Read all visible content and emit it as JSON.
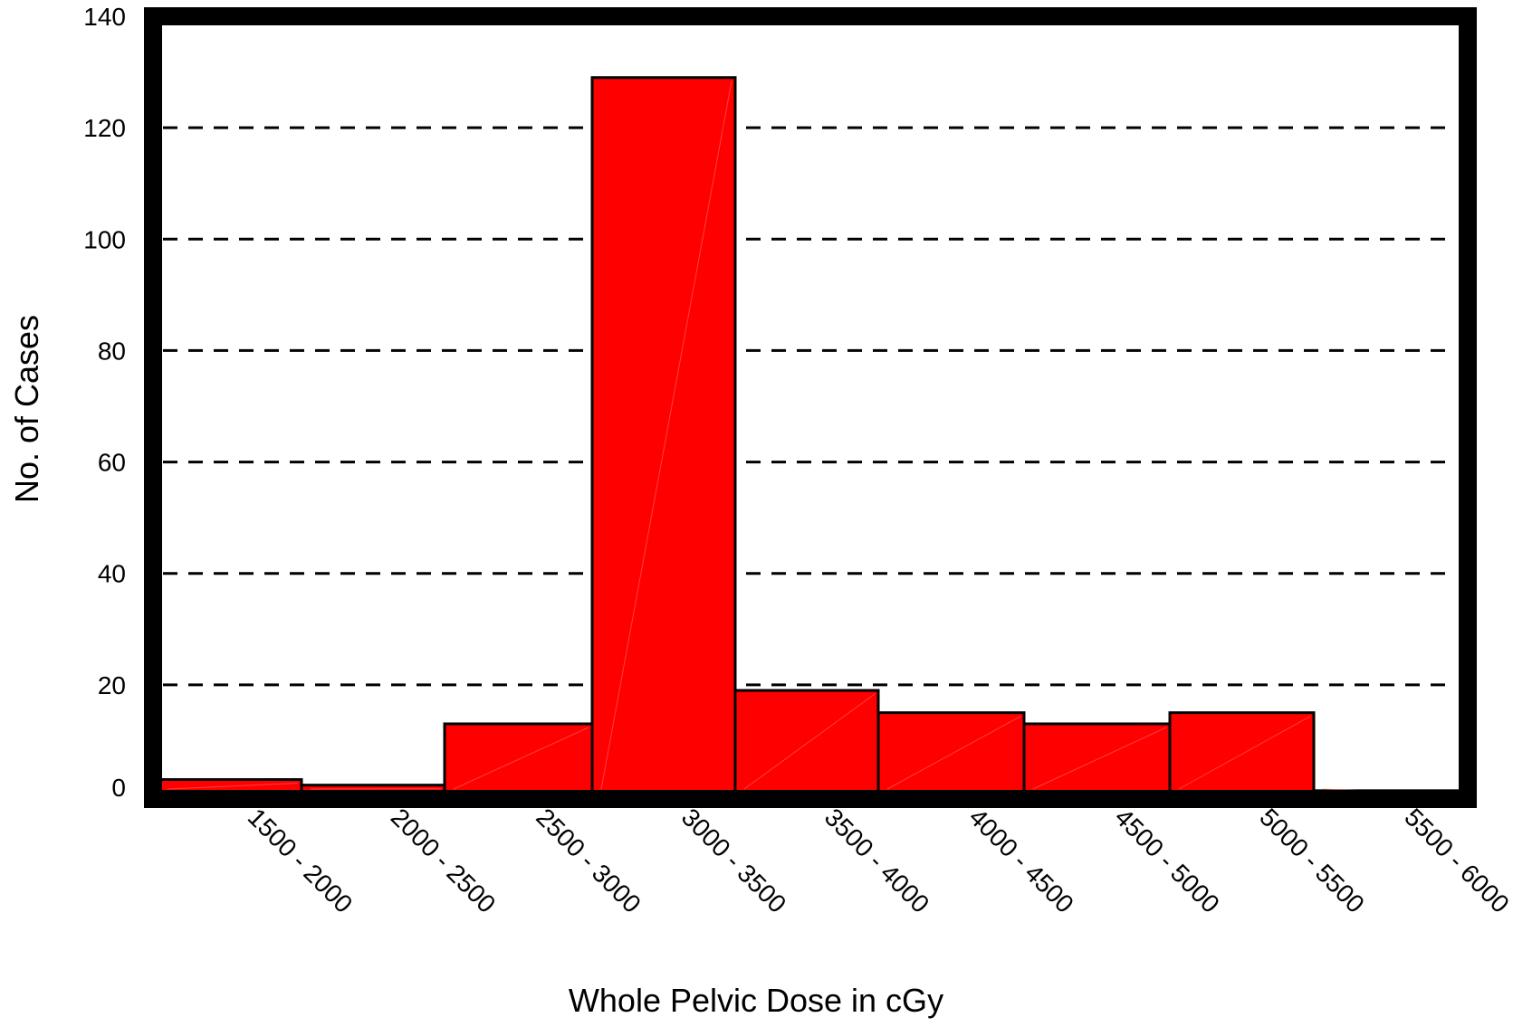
{
  "chart_data": {
    "type": "bar",
    "title": "",
    "xlabel": "Whole Pelvic Dose in cGy",
    "ylabel": "No. of Cases",
    "categories": [
      "1500 - 2000",
      "2000 - 2500",
      "2500 - 3000",
      "3000 - 3500",
      "3500 - 4000",
      "4000 - 4500",
      "4500 - 5000",
      "5000 - 5500",
      "5500 - 6000"
    ],
    "values": [
      3,
      2,
      13,
      129,
      19,
      15,
      13,
      15,
      1
    ],
    "ylim": [
      0,
      140
    ],
    "yticks": [
      0,
      20,
      40,
      60,
      80,
      100,
      120,
      140
    ],
    "grid": "horizontal-dashed",
    "legend": "none",
    "bar_color": "#ff0000",
    "bar_edge_color": "#000000",
    "frame_color": "#000000"
  }
}
